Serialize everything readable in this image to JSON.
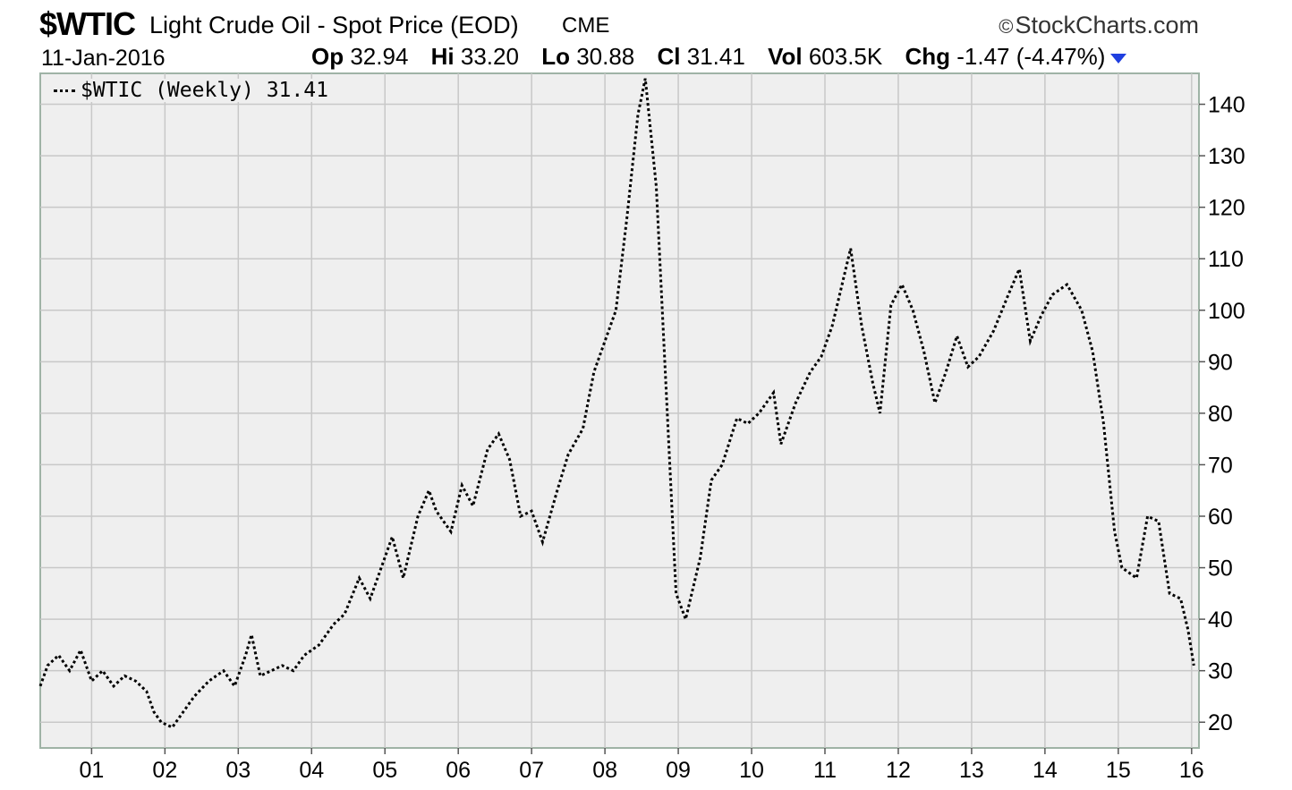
{
  "header": {
    "symbol": "$WTIC",
    "name": "Light Crude Oil - Spot Price (EOD)",
    "exchange": "CME",
    "brand": "StockCharts.com",
    "date": "11-Jan-2016",
    "stats": [
      {
        "label": "Op",
        "value": "32.94"
      },
      {
        "label": "Hi",
        "value": "33.20"
      },
      {
        "label": "Lo",
        "value": "30.88"
      },
      {
        "label": "Cl",
        "value": "31.41"
      },
      {
        "label": "Vol",
        "value": "603.5K"
      },
      {
        "label": "Chg",
        "value": "-1.47 (-4.47%)"
      }
    ],
    "direction": "down"
  },
  "legend": {
    "label": "$WTIC (Weekly) 31.41"
  },
  "colors": {
    "plot_bg": "#efefef",
    "grid": "#c8c8c8",
    "frame": "#9fb3a6",
    "series": "#000000",
    "down_arrow": "#1f3fe0"
  },
  "chart_data": {
    "type": "line",
    "line_style": "dotted",
    "x_ticks": [
      "01",
      "02",
      "03",
      "04",
      "05",
      "06",
      "07",
      "08",
      "09",
      "10",
      "11",
      "12",
      "13",
      "14",
      "15",
      "16"
    ],
    "y_ticks": [
      20,
      30,
      40,
      50,
      60,
      70,
      80,
      90,
      100,
      110,
      120,
      130,
      140
    ],
    "ylim": [
      15,
      146
    ],
    "xlim": [
      2000.3,
      2016.1
    ],
    "axis_position": "right",
    "grid": true,
    "legend_position": "top-left",
    "series": [
      {
        "name": "$WTIC (Weekly)",
        "x": [
          2000.3,
          2000.4,
          2000.55,
          2000.7,
          2000.85,
          2001.0,
          2001.15,
          2001.3,
          2001.45,
          2001.6,
          2001.75,
          2001.85,
          2001.95,
          2002.1,
          2002.25,
          2002.4,
          2002.6,
          2002.8,
          2002.95,
          2003.1,
          2003.18,
          2003.3,
          2003.45,
          2003.6,
          2003.75,
          2003.9,
          2004.1,
          2004.3,
          2004.45,
          2004.65,
          2004.8,
          2004.95,
          2005.1,
          2005.25,
          2005.45,
          2005.6,
          2005.7,
          2005.9,
          2006.05,
          2006.2,
          2006.4,
          2006.55,
          2006.7,
          2006.85,
          2007.0,
          2007.15,
          2007.35,
          2007.5,
          2007.7,
          2007.85,
          2008.0,
          2008.15,
          2008.3,
          2008.45,
          2008.55,
          2008.7,
          2008.85,
          2008.97,
          2009.1,
          2009.3,
          2009.45,
          2009.6,
          2009.8,
          2009.95,
          2010.1,
          2010.3,
          2010.4,
          2010.6,
          2010.8,
          2010.95,
          2011.1,
          2011.25,
          2011.35,
          2011.5,
          2011.65,
          2011.75,
          2011.9,
          2012.05,
          2012.2,
          2012.35,
          2012.5,
          2012.65,
          2012.8,
          2012.95,
          2013.1,
          2013.3,
          2013.5,
          2013.65,
          2013.8,
          2013.95,
          2014.1,
          2014.3,
          2014.5,
          2014.65,
          2014.8,
          2014.95,
          2015.05,
          2015.25,
          2015.4,
          2015.55,
          2015.7,
          2015.85,
          2015.95,
          2016.03
        ],
        "values": [
          27,
          31,
          33,
          30,
          34,
          28,
          30,
          27,
          29,
          28,
          26,
          22,
          20,
          19,
          22,
          25,
          28,
          30,
          27,
          33,
          37,
          29,
          30,
          31,
          30,
          33,
          35,
          39,
          41,
          48,
          44,
          50,
          56,
          48,
          60,
          65,
          61,
          57,
          66,
          62,
          73,
          76,
          71,
          60,
          61,
          55,
          65,
          72,
          77,
          88,
          94,
          100,
          118,
          138,
          145,
          124,
          80,
          45,
          40,
          52,
          67,
          70,
          79,
          78,
          80,
          84,
          74,
          82,
          88,
          91,
          97,
          106,
          112,
          97,
          86,
          80,
          101,
          105,
          100,
          92,
          82,
          88,
          95,
          89,
          91,
          96,
          103,
          108,
          94,
          99,
          103,
          105,
          100,
          92,
          78,
          57,
          50,
          48,
          60,
          59,
          45,
          44,
          38,
          31
        ]
      }
    ]
  }
}
